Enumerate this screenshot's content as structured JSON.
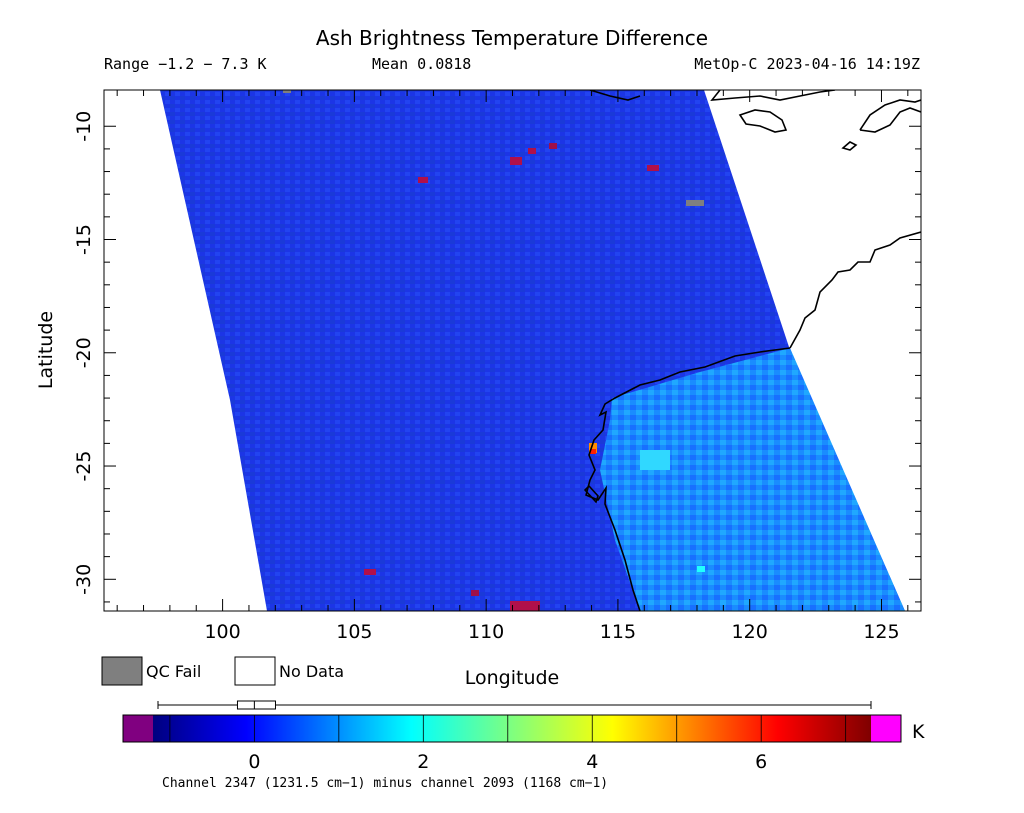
{
  "header": {
    "title": "Ash Brightness Temperature Difference",
    "range_text": "Range −1.2 − 7.3 K",
    "mean_text": "Mean 0.0818",
    "satellite_time": "MetOp-C 2023-04-16 14:19Z"
  },
  "axes": {
    "ylabel": "Latitude",
    "xlabel": "Longitude",
    "lat_ticks": [
      -10,
      -15,
      -20,
      -25,
      -30
    ],
    "lon_ticks": [
      100,
      105,
      110,
      115,
      120,
      125
    ],
    "lon_range": [
      95.5,
      126.5
    ],
    "lat_range": [
      -31.4,
      -8.4
    ]
  },
  "legend": {
    "qc_fail": "QC Fail",
    "no_data": "No Data",
    "qc_fail_color": "#7f7f7f",
    "no_data_color": "#ffffff"
  },
  "colorbar": {
    "unit": "K",
    "ticks": [
      0,
      2,
      4,
      6
    ],
    "min": -1.2,
    "max": 7.3,
    "under_color": "#800080",
    "over_color": "#ff00ff",
    "caption": "Channel 2347 (1231.5 cm−1) minus channel 2093 (1168 cm−1)"
  },
  "boxplot": {
    "min": -1.2,
    "q1": -0.2,
    "median": 0.0,
    "q3": 0.25,
    "max": 7.3
  },
  "colors": {
    "ocean_swath": "#1c35e6",
    "land_swath": "#1a8cff",
    "coastline": "#000000"
  }
}
